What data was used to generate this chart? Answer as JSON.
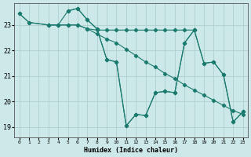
{
  "xlabel": "Humidex (Indice chaleur)",
  "xlim": [
    -0.5,
    23.5
  ],
  "ylim": [
    18.6,
    23.85
  ],
  "yticks": [
    19,
    20,
    21,
    22,
    23
  ],
  "xticks": [
    0,
    1,
    2,
    3,
    4,
    5,
    6,
    7,
    8,
    9,
    10,
    11,
    12,
    13,
    14,
    15,
    16,
    17,
    18,
    19,
    20,
    21,
    22,
    23
  ],
  "bg_color": "#cce8e8",
  "grid_color": "#b0d0d0",
  "line_color": "#1a7a6e",
  "lines": [
    {
      "x": [
        0,
        1,
        3,
        4,
        5,
        6,
        7,
        8,
        9,
        10,
        11,
        12,
        13,
        14,
        15,
        16,
        17,
        18,
        19,
        20,
        21,
        22,
        23
      ],
      "y": [
        23.45,
        23.1,
        23.0,
        23.0,
        23.55,
        23.65,
        23.2,
        22.85,
        21.65,
        21.55,
        19.05,
        19.5,
        19.45,
        20.35,
        20.4,
        20.35,
        22.3,
        22.8,
        21.5,
        21.55,
        21.05,
        19.2,
        19.6
      ]
    },
    {
      "x": [
        0,
        1,
        3,
        4,
        5,
        6,
        7,
        8,
        9,
        10,
        11,
        12,
        13,
        14,
        15,
        16,
        17,
        18
      ],
      "y": [
        23.45,
        23.1,
        23.0,
        23.0,
        23.0,
        23.0,
        22.85,
        22.8,
        22.8,
        22.8,
        22.8,
        22.8,
        22.8,
        22.8,
        22.8,
        22.8,
        22.8,
        22.8
      ]
    },
    {
      "x": [
        3,
        4,
        5,
        6,
        7,
        8,
        9,
        10,
        11,
        12,
        13,
        14,
        15,
        16,
        17,
        18,
        19,
        20,
        21,
        22,
        23
      ],
      "y": [
        23.0,
        23.0,
        23.0,
        23.0,
        22.85,
        22.65,
        22.45,
        22.3,
        22.05,
        21.8,
        21.55,
        21.35,
        21.1,
        20.9,
        20.65,
        20.45,
        20.25,
        20.05,
        19.85,
        19.65,
        19.5
      ]
    },
    {
      "x": [
        5,
        6,
        7,
        8,
        9,
        10,
        11,
        12,
        13,
        14,
        15,
        16,
        17,
        18,
        19,
        20,
        21,
        22,
        23
      ],
      "y": [
        23.55,
        23.65,
        23.2,
        22.85,
        21.65,
        21.55,
        19.05,
        19.5,
        19.45,
        20.35,
        20.4,
        20.35,
        22.3,
        22.8,
        21.5,
        21.55,
        21.05,
        19.2,
        19.6
      ]
    }
  ]
}
